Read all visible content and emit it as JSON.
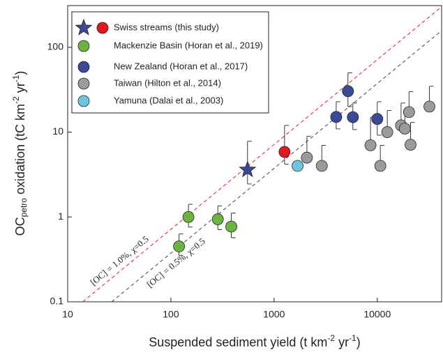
{
  "chart_data": {
    "type": "scatter",
    "x_label_parts": [
      "Suspended sediment yield (t km",
      "-2",
      " yr",
      "-1",
      ")"
    ],
    "y_label_parts": [
      "OC",
      "petro",
      " oxidation (tC km",
      "-2",
      " yr",
      "-1",
      ")"
    ],
    "xscale": "log",
    "yscale": "log",
    "xlim": [
      10,
      42000
    ],
    "ylim": [
      0.1,
      310
    ],
    "xticks": [
      10,
      100,
      1000,
      10000
    ],
    "yticks": [
      0.1,
      1,
      10,
      100
    ],
    "legend": "top-left",
    "series": [
      {
        "name": "Swiss streams (this study)",
        "colors": [
          "#3a4a9a",
          "#e5161e"
        ],
        "markers": [
          "star",
          "circle"
        ],
        "x": [
          553,
          1263
        ],
        "values": [
          3.6,
          5.85
        ],
        "upper": [
          7.8,
          12
        ],
        "lower": [
          2.45,
          4.2
        ]
      },
      {
        "name": "Mackenzie Basin (Horan et al., 2019)",
        "colors": [
          "#6db33f"
        ],
        "markers": [
          "circle"
        ],
        "x": [
          120,
          148,
          285,
          385
        ],
        "values": [
          0.45,
          1.0,
          0.94,
          0.77
        ],
        "upper": [
          0.63,
          1.41,
          1.35,
          1.11
        ],
        "lower": [
          0.35,
          0.76,
          0.71,
          0.57
        ]
      },
      {
        "name": "New Zealand (Horan et al., 2017)",
        "colors": [
          "#3a4a9a"
        ],
        "markers": [
          "circle"
        ],
        "x": [
          4000,
          5200,
          5800,
          10000
        ],
        "values": [
          15.1,
          30.4,
          15,
          14.3
        ],
        "upper": [
          22.8,
          50,
          22,
          22.8
        ],
        "lower": [
          10.9,
          20,
          10.7,
          9.2
        ]
      },
      {
        "name": "Taiwan (Hilton et al., 2014)",
        "colors": [
          "#9b9b9b"
        ],
        "markers": [
          "circle"
        ],
        "x": [
          2080,
          2900,
          8600,
          10700,
          12500,
          17000,
          18500,
          20300,
          21000,
          32000
        ],
        "values": [
          5.0,
          4.0,
          7.0,
          4.0,
          10,
          12,
          11,
          17.2,
          7.1,
          20
        ],
        "upper": [
          8.9,
          7,
          15,
          7,
          18,
          22,
          18,
          30,
          13,
          34.7
        ],
        "lower": [
          null,
          null,
          null,
          null,
          null,
          null,
          null,
          null,
          null,
          null
        ]
      },
      {
        "name": "Yamuna (Dalai et al., 2003)",
        "colors": [
          "#6cc6e0"
        ],
        "markers": [
          "circle"
        ],
        "x": [
          1690
        ],
        "values": [
          4.0
        ],
        "upper": [
          null
        ],
        "lower": [
          null
        ]
      }
    ],
    "reference_lines": [
      {
        "label": "[OC] = 1.0%, χ=0.5",
        "color": "#e5161e",
        "x": [
          14,
          42000
        ],
        "values": [
          0.1,
          300
        ]
      },
      {
        "label": "[OC] = 0.5%, χ=0.5",
        "color": "#444444",
        "x": [
          26.7,
          42000
        ],
        "values": [
          0.1,
          157
        ]
      }
    ]
  }
}
